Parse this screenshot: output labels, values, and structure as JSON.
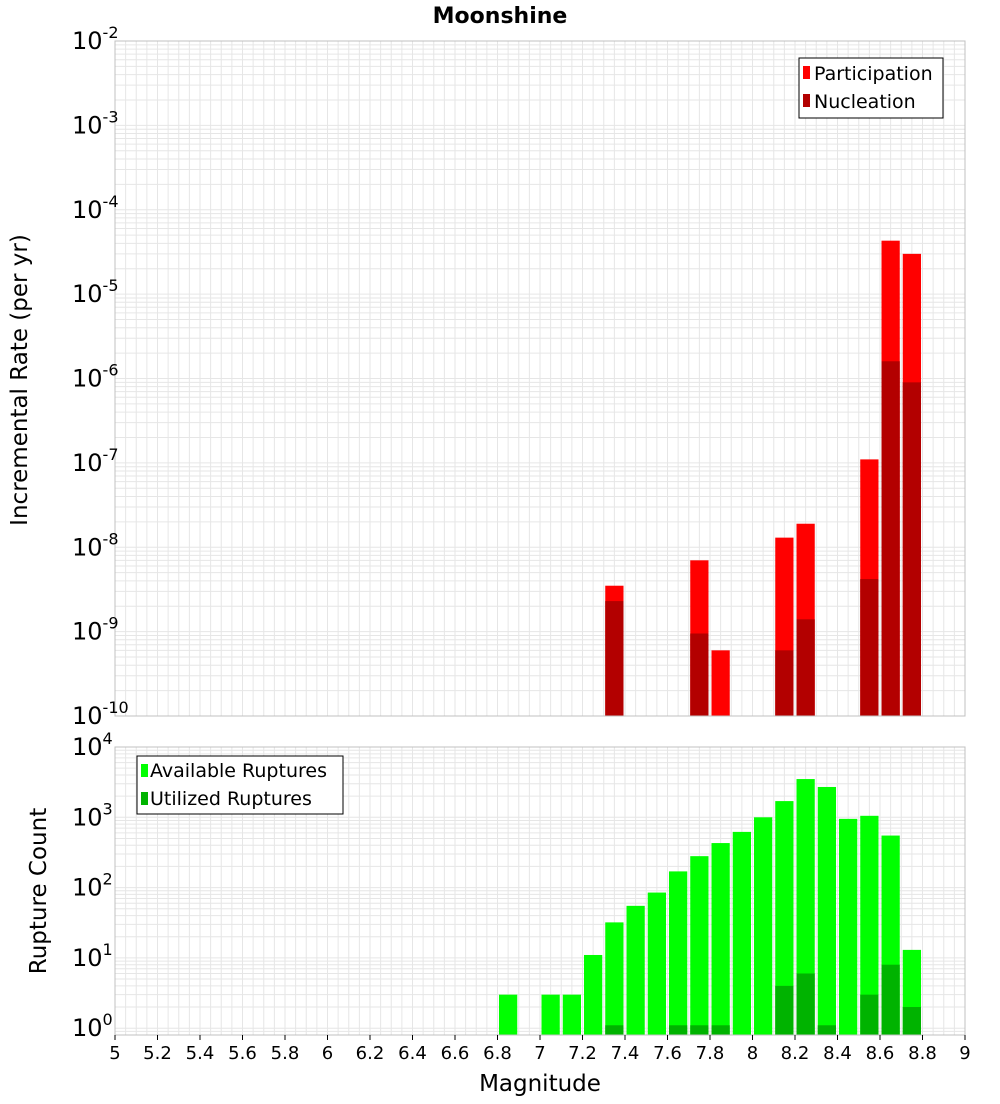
{
  "title": "Moonshine",
  "colors": {
    "participation": "#ff0000",
    "nucleation": "#b30000",
    "available": "#00ff00",
    "utilized": "#00b300",
    "grid": "#e6e6e6",
    "frame": "#c0c0c0"
  },
  "chart_data": [
    {
      "type": "bar",
      "panel": "rate",
      "ylabel": "Incremental Rate (per yr)",
      "yscale": "log",
      "ylim": [
        1e-10,
        0.01
      ],
      "xlim": [
        5,
        9
      ],
      "grid": true,
      "legend_position": "top-right",
      "bin_width": 0.1,
      "ytick_exponents": [
        "-2",
        "-3",
        "-4",
        "-5",
        "-6",
        "-7",
        "-8",
        "-9",
        "-10"
      ],
      "series": [
        {
          "name": "Participation",
          "color": "#ff0000",
          "x": [
            7.35,
            7.75,
            7.85,
            8.15,
            8.25,
            8.55,
            8.65,
            8.75
          ],
          "values": [
            3.5e-09,
            7e-09,
            6e-10,
            1.3e-08,
            1.9e-08,
            1.1e-07,
            4.3e-05,
            3e-05
          ]
        },
        {
          "name": "Nucleation",
          "color": "#b30000",
          "x": [
            7.35,
            7.75,
            8.15,
            8.25,
            8.55,
            8.65,
            8.75
          ],
          "values": [
            2.3e-09,
            9.5e-10,
            6e-10,
            1.4e-09,
            4.2e-09,
            1.6e-06,
            9e-07
          ]
        }
      ]
    },
    {
      "type": "bar",
      "panel": "count",
      "ylabel": "Rupture Count",
      "xlabel": "Magnitude",
      "yscale": "log",
      "ylim": [
        0.8,
        10000
      ],
      "xlim": [
        5,
        9
      ],
      "grid": true,
      "legend_position": "top-left",
      "bin_width": 0.1,
      "ytick_exponents": [
        "4",
        "3",
        "2",
        "1",
        "0"
      ],
      "xticks": [
        "5",
        "5.2",
        "5.4",
        "5.6",
        "5.8",
        "6",
        "6.2",
        "6.4",
        "6.6",
        "6.8",
        "7",
        "7.2",
        "7.4",
        "7.6",
        "7.8",
        "8",
        "8.2",
        "8.4",
        "8.6",
        "8.8",
        "9"
      ],
      "series": [
        {
          "name": "Available Ruptures",
          "color": "#00ff00",
          "x": [
            6.85,
            7.05,
            7.15,
            7.25,
            7.35,
            7.45,
            7.55,
            7.65,
            7.75,
            7.85,
            7.95,
            8.05,
            8.15,
            8.25,
            8.35,
            8.45,
            8.55,
            8.65,
            8.75
          ],
          "values": [
            3,
            3,
            3,
            11,
            32,
            55,
            85,
            170,
            280,
            430,
            620,
            1000,
            1700,
            3500,
            2700,
            950,
            1050,
            550,
            13
          ]
        },
        {
          "name": "Utilized Ruptures",
          "color": "#00b300",
          "x": [
            7.35,
            7.65,
            7.75,
            7.85,
            8.15,
            8.25,
            8.35,
            8.55,
            8.65,
            8.75
          ],
          "values": [
            1.1,
            1.1,
            1.1,
            1.1,
            4,
            6,
            1.1,
            3,
            8,
            2
          ]
        }
      ]
    }
  ]
}
